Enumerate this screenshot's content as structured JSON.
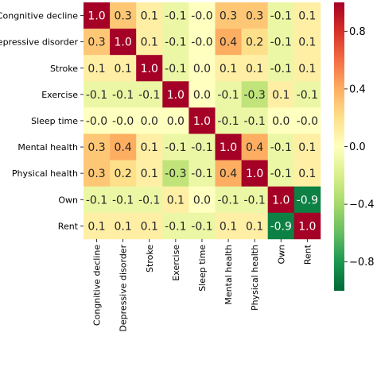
{
  "chart_data": {
    "type": "heatmap",
    "row_labels": [
      "Congnitive decline",
      "Depressive disorder",
      "Stroke",
      "Exercise",
      "Sleep time",
      "Mental health",
      "Physical health",
      "Own",
      "Rent"
    ],
    "col_labels": [
      "Congnitive decline",
      "Depressive disorder",
      "Stroke",
      "Exercise",
      "Sleep time",
      "Mental health",
      "Physical health",
      "Own",
      "Rent"
    ],
    "values": [
      [
        1.0,
        0.3,
        0.1,
        -0.1,
        -0.0,
        0.3,
        0.3,
        -0.1,
        0.1
      ],
      [
        0.3,
        1.0,
        0.1,
        -0.1,
        -0.0,
        0.4,
        0.2,
        -0.1,
        0.1
      ],
      [
        0.1,
        0.1,
        1.0,
        -0.1,
        0.0,
        0.1,
        0.1,
        -0.1,
        0.1
      ],
      [
        -0.1,
        -0.1,
        -0.1,
        1.0,
        0.0,
        -0.1,
        -0.3,
        0.1,
        -0.1
      ],
      [
        -0.0,
        -0.0,
        0.0,
        0.0,
        1.0,
        -0.1,
        -0.1,
        0.0,
        -0.0
      ],
      [
        0.3,
        0.4,
        0.1,
        -0.1,
        -0.1,
        1.0,
        0.4,
        -0.1,
        0.1
      ],
      [
        0.3,
        0.2,
        0.1,
        -0.3,
        -0.1,
        0.4,
        1.0,
        -0.1,
        0.1
      ],
      [
        -0.1,
        -0.1,
        -0.1,
        0.1,
        0.0,
        -0.1,
        -0.1,
        1.0,
        -0.9
      ],
      [
        0.1,
        0.1,
        0.1,
        -0.1,
        -0.1,
        0.1,
        0.1,
        -0.9,
        1.0
      ]
    ],
    "value_labels": [
      [
        "1.0",
        "0.3",
        "0.1",
        "-0.1",
        "-0.0",
        "0.3",
        "0.3",
        "-0.1",
        "0.1"
      ],
      [
        "0.3",
        "1.0",
        "0.1",
        "-0.1",
        "-0.0",
        "0.4",
        "0.2",
        "-0.1",
        "0.1"
      ],
      [
        "0.1",
        "0.1",
        "1.0",
        "-0.1",
        "0.0",
        "0.1",
        "0.1",
        "-0.1",
        "0.1"
      ],
      [
        "-0.1",
        "-0.1",
        "-0.1",
        "1.0",
        "0.0",
        "-0.1",
        "-0.3",
        "0.1",
        "-0.1"
      ],
      [
        "-0.0",
        "-0.0",
        "0.0",
        "0.0",
        "1.0",
        "-0.1",
        "-0.1",
        "0.0",
        "-0.0"
      ],
      [
        "0.3",
        "0.4",
        "0.1",
        "-0.1",
        "-0.1",
        "1.0",
        "0.4",
        "-0.1",
        "0.1"
      ],
      [
        "0.3",
        "0.2",
        "0.1",
        "-0.3",
        "-0.1",
        "0.4",
        "1.0",
        "-0.1",
        "0.1"
      ],
      [
        "-0.1",
        "-0.1",
        "-0.1",
        "0.1",
        "0.0",
        "-0.1",
        "-0.1",
        "1.0",
        "-0.9"
      ],
      [
        "0.1",
        "0.1",
        "0.1",
        "-0.1",
        "-0.1",
        "0.1",
        "0.1",
        "-0.9",
        "1.0"
      ]
    ],
    "colorbar": {
      "colormap": "RdYlGn_r",
      "vmin": -1.0,
      "vmax": 1.0,
      "ticks": [
        0.8,
        0.4,
        0.0,
        -0.4,
        -0.8
      ],
      "tick_labels": [
        "0.8",
        "0.4",
        "0.0",
        "−0.4",
        "−0.8"
      ]
    },
    "title": "",
    "xlabel": "",
    "ylabel": ""
  }
}
